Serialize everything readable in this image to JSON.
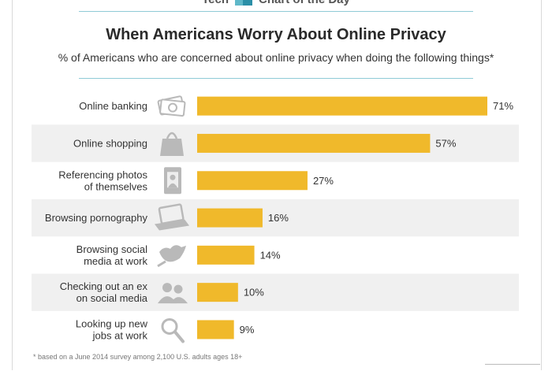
{
  "header": {
    "brand_left": "Tech",
    "brand_right": "Chart of the Day"
  },
  "chart_data": {
    "type": "bar",
    "orientation": "horizontal",
    "title": "When Americans Worry About Online Privacy",
    "subtitle": "% of Americans who are concerned about online privacy when doing the following things*",
    "categories": [
      [
        "Online banking"
      ],
      [
        "Online shopping"
      ],
      [
        "Referencing photos",
        "of themselves"
      ],
      [
        "Browsing pornography"
      ],
      [
        "Browsing social",
        "media at work"
      ],
      [
        "Checking out an ex",
        "on social media"
      ],
      [
        "Looking up new",
        "jobs at work"
      ]
    ],
    "values": [
      71,
      57,
      27,
      16,
      14,
      10,
      9
    ],
    "value_labels": [
      "71%",
      "57%",
      "27%",
      "16%",
      "14%",
      "10%",
      "9%"
    ],
    "icons": [
      "money-icon",
      "shopping-bag-icon",
      "photo-icon",
      "laptop-icon",
      "bird-icon",
      "people-icon",
      "magnifier-icon"
    ],
    "xlim": [
      0,
      71
    ],
    "grid": false,
    "legend": "none",
    "colors": {
      "bar": "#f0b92b",
      "band": "#f0f0f0",
      "icon": "#b9b9b9"
    }
  },
  "footnote": "* based on a June 2014 survey among 2,100 U.S. adults ages 18+"
}
